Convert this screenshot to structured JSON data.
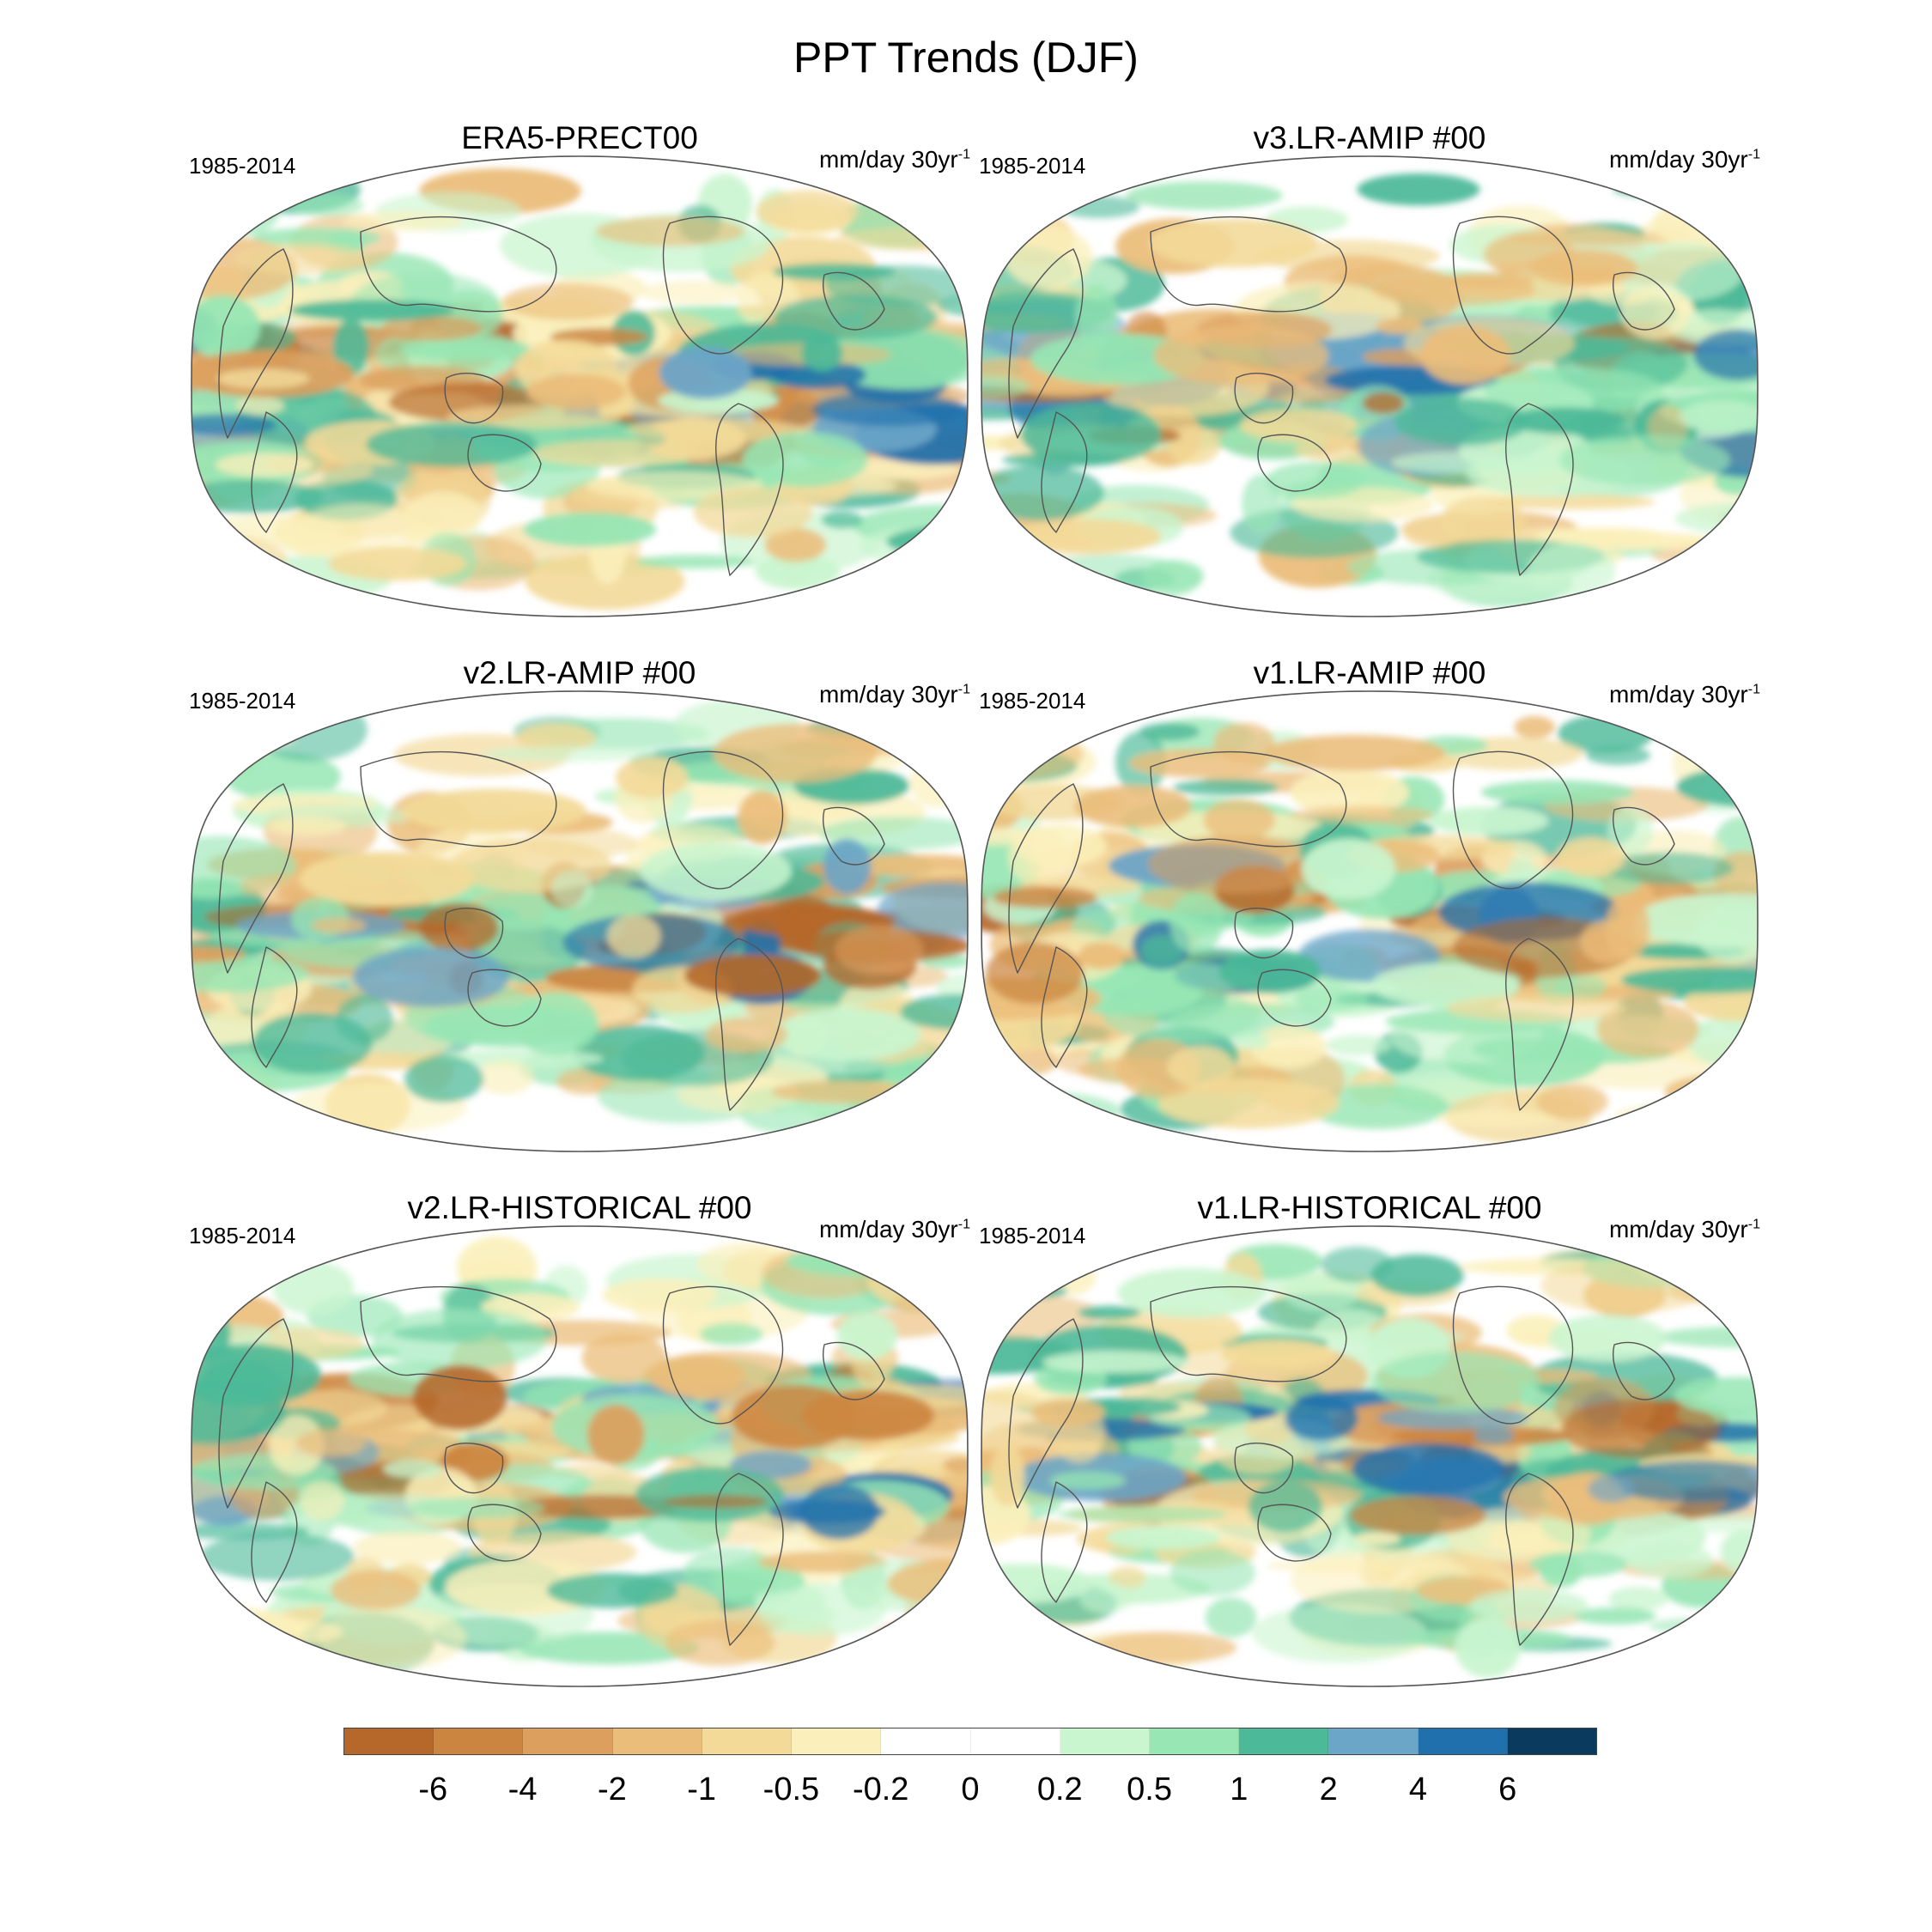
{
  "title": "PPT Trends (DJF)",
  "panels": [
    {
      "title": "ERA5-PRECT00",
      "period": "1985-2014",
      "units": "mm/day 30yr",
      "units_sup": "-1"
    },
    {
      "title": "v3.LR-AMIP  #00",
      "period": "1985-2014",
      "units": "mm/day 30yr",
      "units_sup": "-1"
    },
    {
      "title": "v2.LR-AMIP  #00",
      "period": "1985-2014",
      "units": "mm/day 30yr",
      "units_sup": "-1"
    },
    {
      "title": "v1.LR-AMIP  #00",
      "period": "1985-2014",
      "units": "mm/day 30yr",
      "units_sup": "-1"
    },
    {
      "title": "v2.LR-HISTORICAL  #00",
      "period": "1985-2014",
      "units": "mm/day 30yr",
      "units_sup": "-1"
    },
    {
      "title": "v1.LR-HISTORICAL  #00",
      "period": "1985-2014",
      "units": "mm/day 30yr",
      "units_sup": "-1"
    }
  ],
  "colorbar": {
    "colors": [
      "#b5682a",
      "#cc8540",
      "#dc9f5e",
      "#ebbd7a",
      "#f3da99",
      "#fbf0bb",
      "#ffffff",
      "#ffffff",
      "#c9f5cf",
      "#97e6b4",
      "#4cb998",
      "#6ba5c8",
      "#1f70ac",
      "#0a3a5e"
    ],
    "labels": [
      "-6",
      "-4",
      "-2",
      "-1",
      "-0.5",
      "-0.2",
      "0",
      "0.2",
      "0.5",
      "1",
      "2",
      "4",
      "6"
    ]
  }
}
